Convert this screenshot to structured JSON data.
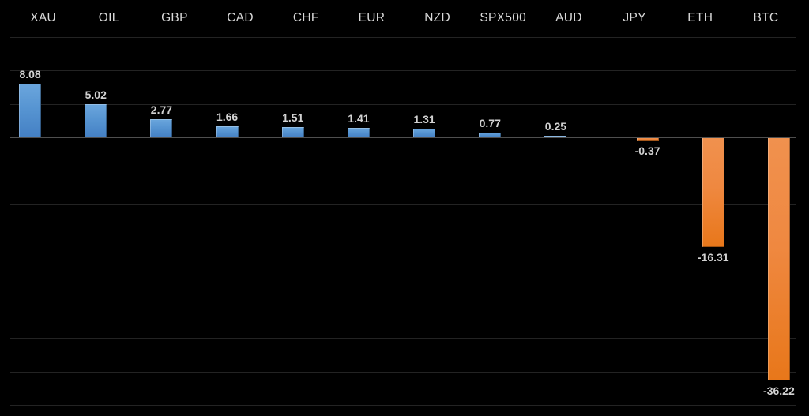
{
  "chart_data": {
    "type": "bar",
    "title": "",
    "xlabel": "",
    "ylabel": "",
    "categories": [
      "XAU",
      "OIL",
      "GBP",
      "CAD",
      "CHF",
      "EUR",
      "NZD",
      "SPX500",
      "AUD",
      "JPY",
      "ETH",
      "BTC"
    ],
    "values": [
      8.08,
      5.02,
      2.77,
      1.66,
      1.51,
      1.41,
      1.31,
      0.77,
      0.25,
      -0.37,
      -16.31,
      -36.22
    ],
    "value_labels": [
      "8.08",
      "5.02",
      "2.77",
      "1.66",
      "1.51",
      "1.41",
      "1.31",
      "0.77",
      "0.25",
      "-0.37",
      "-16.31",
      "-36.22"
    ],
    "ylim": [
      -40,
      15
    ],
    "gridline_step": 5,
    "grid": true,
    "legend_position": "none",
    "colors": {
      "background": "#000000",
      "positive_bar": "#5b9bd5",
      "negative_bar": "#ed7d31",
      "gridline": "#232323",
      "zero_axis": "#4f4f4f",
      "category_text": "#d9d9d9",
      "value_text": "#d2d2d2"
    }
  }
}
